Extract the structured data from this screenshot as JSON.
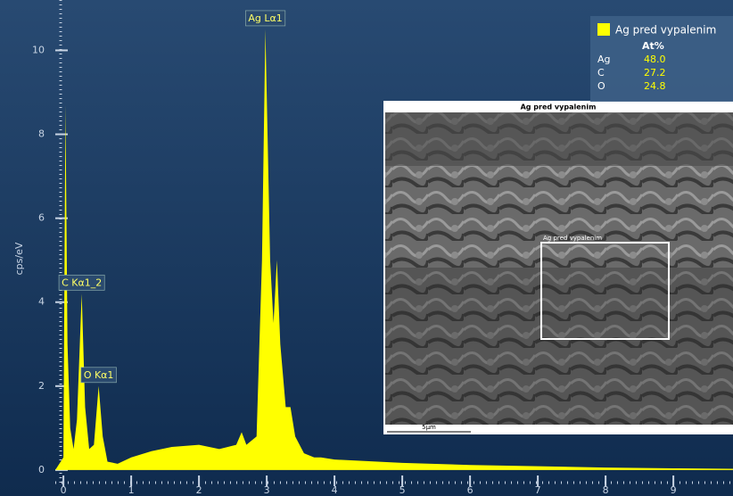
{
  "chart_data": {
    "type": "area",
    "y_label": "cps/eV",
    "x": [
      -0.12,
      0.0,
      0.03,
      0.06,
      0.1,
      0.15,
      0.2,
      0.27,
      0.32,
      0.38,
      0.45,
      0.52,
      0.58,
      0.65,
      0.8,
      1.0,
      1.3,
      1.6,
      2.0,
      2.3,
      2.55,
      2.63,
      2.7,
      2.85,
      2.93,
      2.98,
      3.05,
      3.1,
      3.15,
      3.2,
      3.28,
      3.35,
      3.42,
      3.55,
      3.7,
      3.8,
      4.0,
      5.0,
      6.0,
      7.0,
      8.0,
      9.0,
      9.88
    ],
    "series": [
      {
        "name": "Ag pred vypalenim",
        "color": "#ffff00",
        "values": [
          0,
          0.3,
          8.7,
          3.0,
          1.0,
          0.5,
          1.2,
          4.2,
          1.5,
          0.5,
          0.6,
          2.0,
          0.8,
          0.2,
          0.15,
          0.3,
          0.45,
          0.55,
          0.6,
          0.5,
          0.6,
          0.9,
          0.6,
          0.8,
          5.0,
          10.5,
          5.0,
          3.5,
          5.0,
          3.0,
          1.5,
          1.5,
          0.8,
          0.4,
          0.3,
          0.3,
          0.25,
          0.17,
          0.12,
          0.09,
          0.06,
          0.04,
          0.03
        ]
      }
    ],
    "xlim": [
      -0.12,
      9.88
    ],
    "xticks": [
      0,
      1,
      2,
      3,
      4,
      5,
      6,
      7,
      8,
      9
    ],
    "ylim": [
      -0.3,
      11.2
    ],
    "yticks": [
      0,
      2,
      4,
      6,
      8,
      10
    ],
    "annotations": [
      {
        "text": "Ag Lα1",
        "x": 2.98,
        "y": 10.5
      },
      {
        "text": "C Kα1_2",
        "x": 0.27,
        "y": 4.2
      },
      {
        "text": "O Kα1",
        "x": 0.52,
        "y": 2.0
      }
    ],
    "quantification": {
      "header": "At%",
      "rows": [
        [
          "Ag",
          "48.0"
        ],
        [
          "C",
          "27.2"
        ],
        [
          "O",
          "24.8"
        ]
      ]
    },
    "inset": {
      "title": "Ag pred vypalenim",
      "region_label": "Ag pred vypalenim",
      "scale_bar": "5µm"
    }
  }
}
